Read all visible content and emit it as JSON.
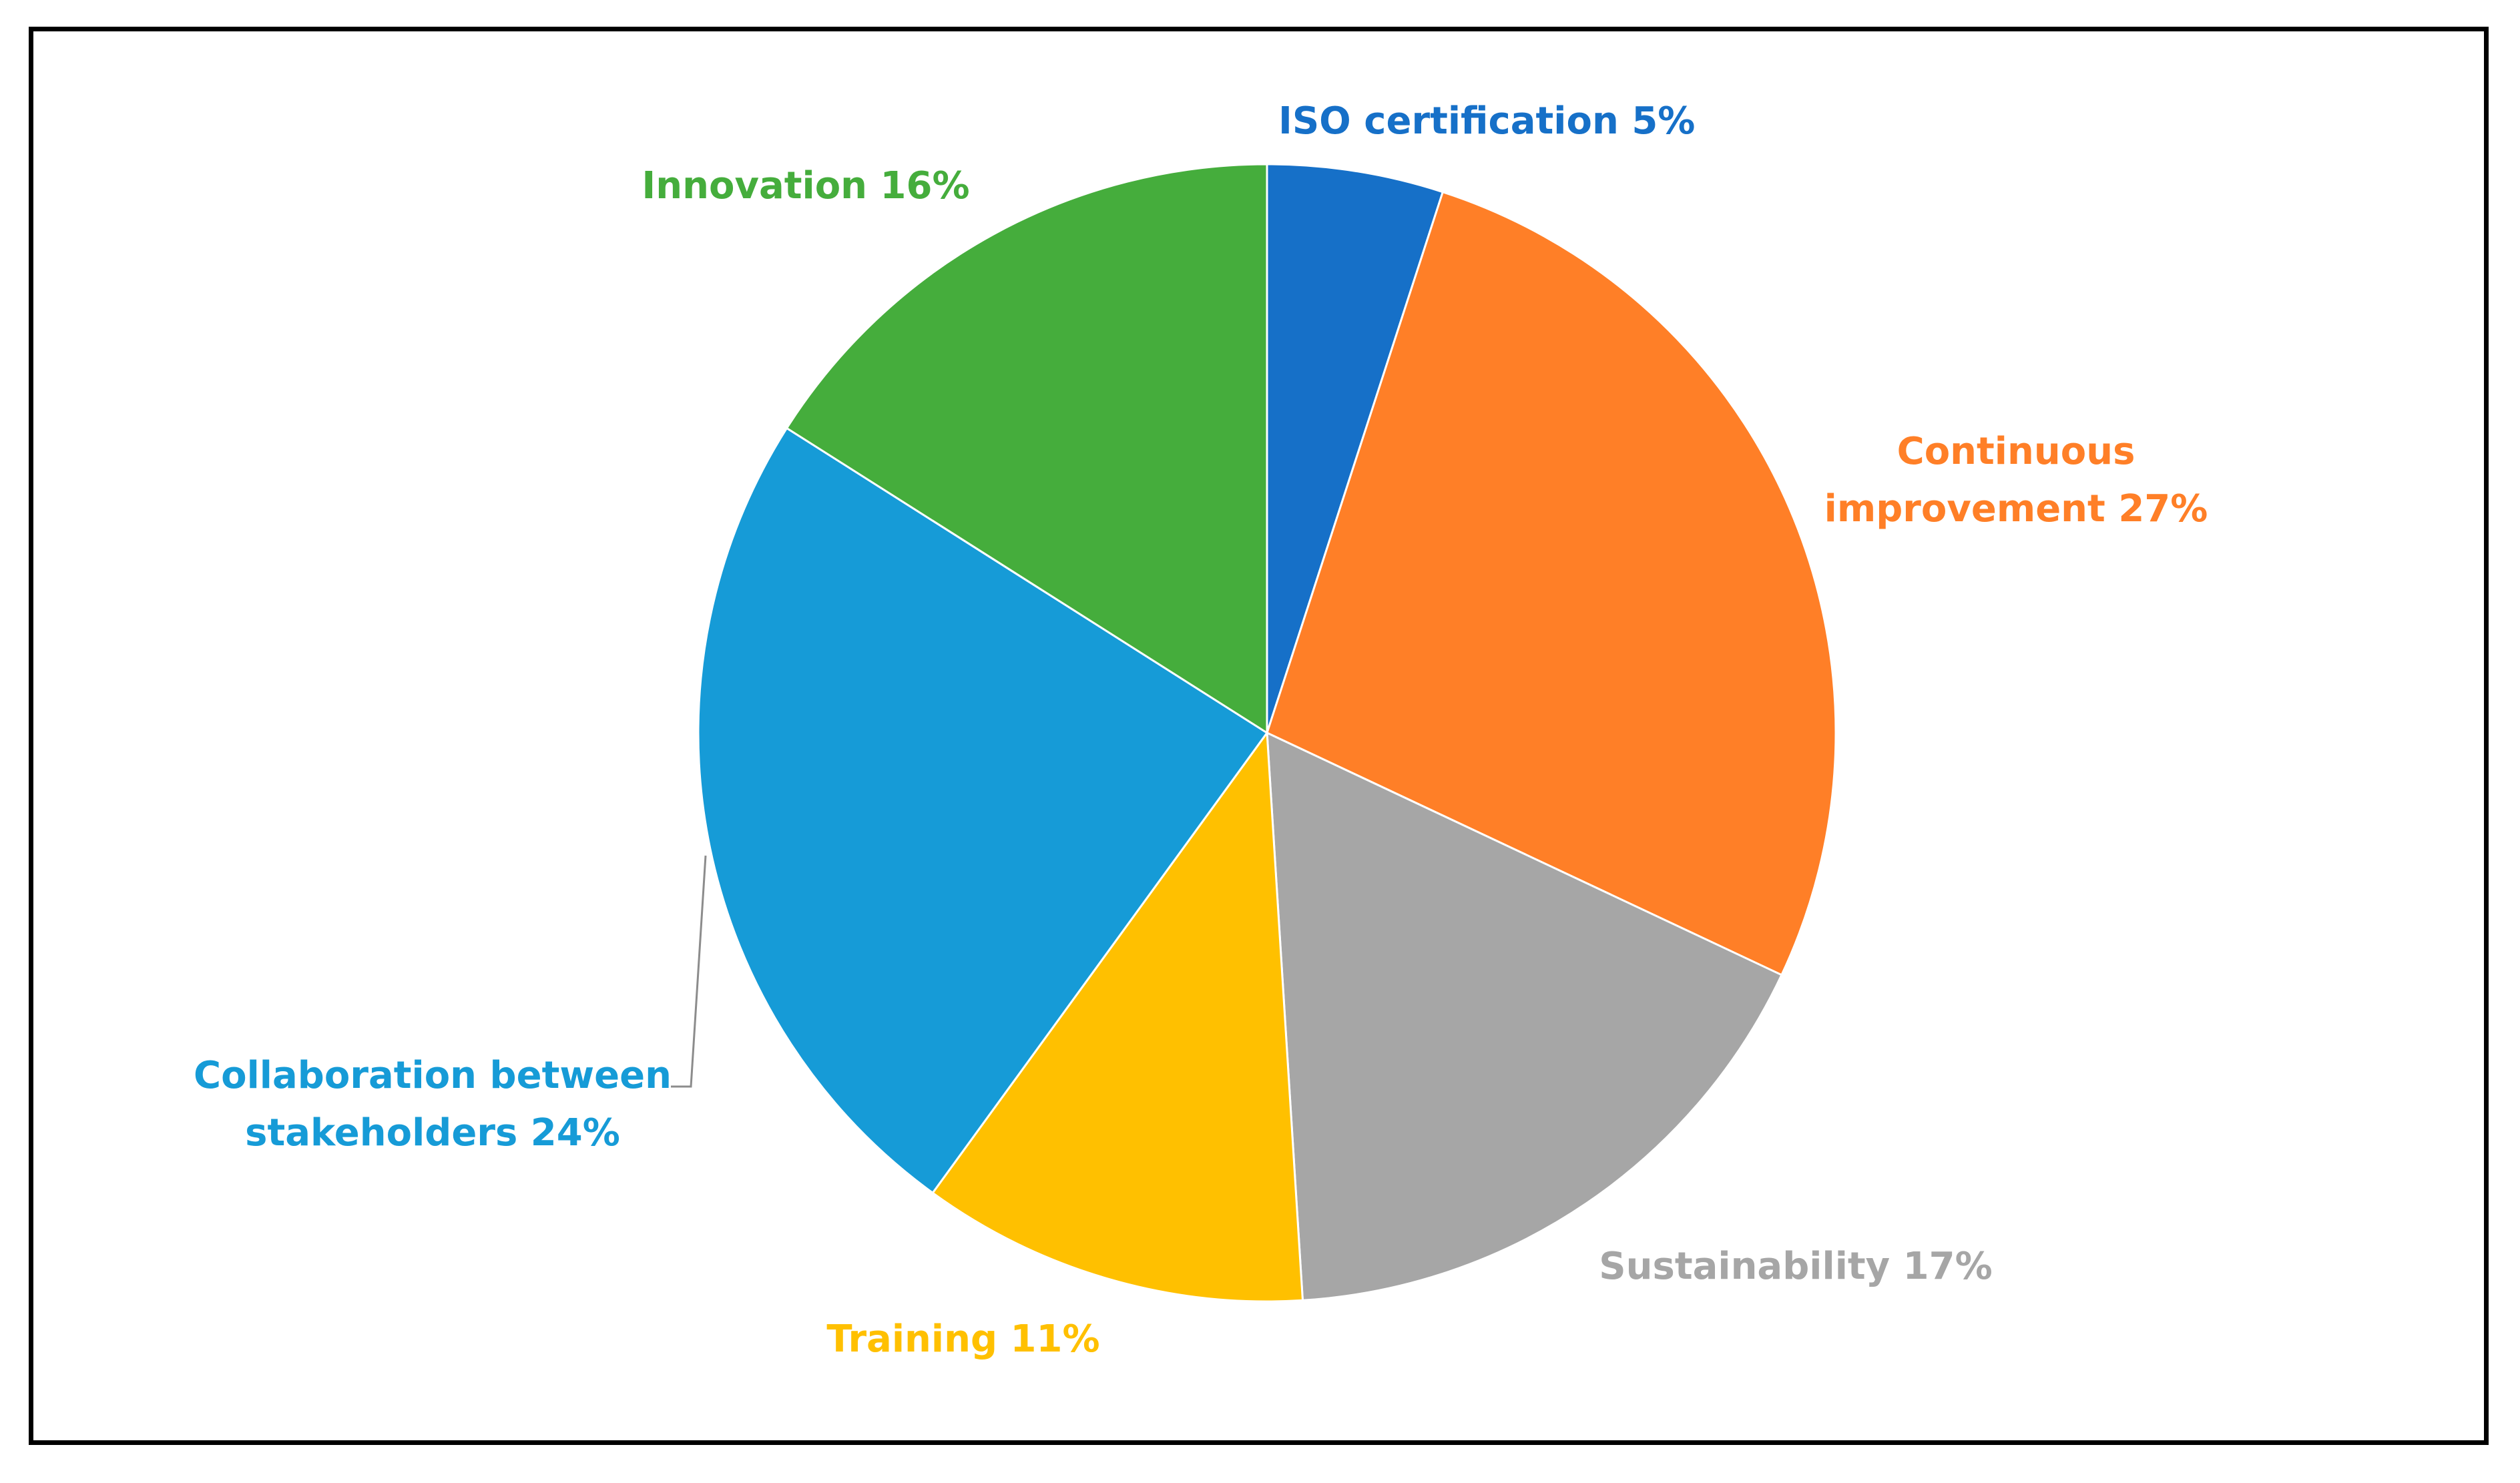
{
  "chart_data": {
    "type": "pie",
    "title": "",
    "slices": [
      {
        "label": "ISO certification 5%",
        "value": 5,
        "color": "#1670C8"
      },
      {
        "label": "Continuous improvement 27%",
        "value": 27,
        "color": "#FF7F27"
      },
      {
        "label": "Sustainability 17%",
        "value": 17,
        "color": "#A6A6A6"
      },
      {
        "label": "Training 11%",
        "value": 11,
        "color": "#FFC000"
      },
      {
        "label": "Collaboration between stakeholders 24%",
        "value": 24,
        "color": "#169BD7"
      },
      {
        "label": "Innovation 16%",
        "value": 16,
        "color": "#45AD3C"
      }
    ],
    "start_angle": "12 o'clock",
    "direction": "clockwise",
    "legend": "none",
    "labels": "outside"
  }
}
